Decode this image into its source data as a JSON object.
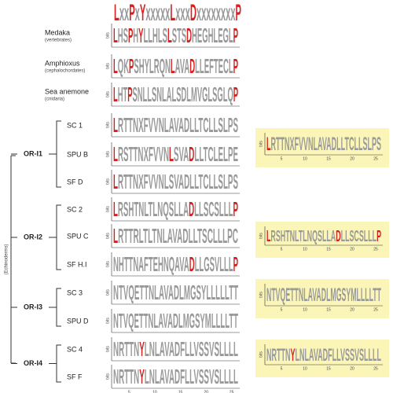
{
  "header": {
    "motif": "LxxPxYxxxxxLxxxDxxxxxxxxP"
  },
  "clade": "(Echinoderms)",
  "axis": {
    "ylabel": "bits",
    "xticks": [
      "5",
      "10",
      "15",
      "20",
      "25"
    ]
  },
  "rows": [
    {
      "label": "Medaka",
      "sublabel": "(vertebrates)",
      "logo": "LHSPHYLLHLSLSTSDHEGHLEGLP"
    },
    {
      "label": "Amphioxus",
      "sublabel": "(cephalochordates)",
      "logo": "LQKPSHYLRQNLAVADLLEFTECLP"
    },
    {
      "label": "Sea anemone",
      "sublabel": "(cnidaria)",
      "logo": "LHTPSNLLSNLALSDLMVGLSGLQP"
    },
    {
      "label": "SC 1",
      "logo": "LRTTNXFVVNLAVADLLTCLLSLPS"
    },
    {
      "label": "SPU B",
      "logo": "LRSTTNXFVVNLSVADLLTCLELPE"
    },
    {
      "label": "SF D",
      "logo": "LRTTNXFVVNLSVADLLTCLLSLPS"
    },
    {
      "label": "SC 2",
      "logo": "LRSHTNLTLNQSLLADLLSCSLLLP"
    },
    {
      "label": "SPU C",
      "logo": "LRTTRLTLTNLAVADLLTSCLLLPC"
    },
    {
      "label": "SF H.I",
      "logo": "NHTTNAFTEHNQAVADLLGSVLLLP"
    },
    {
      "label": "SC 3",
      "logo": "NTVQETTNLAVADLMGSYLLLLLTT"
    },
    {
      "label": "SPU D",
      "logo": "NTVQETTNLAVADLMGSYMLLLLTT"
    },
    {
      "label": "SC 4",
      "logo": "NRTTNYLNLAVADFLLVSSVSLLLL"
    },
    {
      "label": "SF F",
      "logo": "NRTTNYLNLAVADFLLVSSVSLLLL"
    }
  ],
  "groups": [
    {
      "label": "OR-I1"
    },
    {
      "label": "OR-I2"
    },
    {
      "label": "OR-I3"
    },
    {
      "label": "OR-I4"
    }
  ],
  "panels": [
    {
      "logo": "LRTTNXFVVNLAVADLLTCLLSLPS"
    },
    {
      "logo": "LRSHTNLTLNQSLLADLLSCSLLLP"
    },
    {
      "logo": "NTVQETTNLAVADLMGSYMLLLLTT"
    },
    {
      "logo": "NRTTNYLNLAVADFLLVSSVSLLLL"
    }
  ]
}
